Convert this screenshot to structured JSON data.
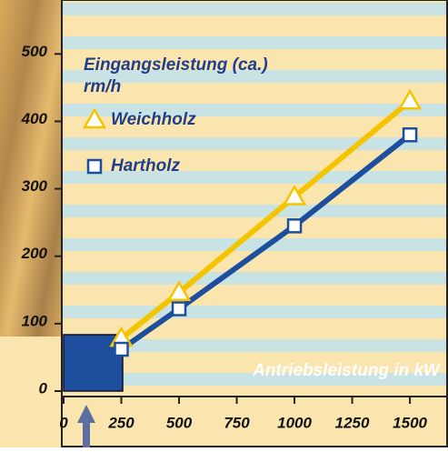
{
  "chart_data": {
    "type": "line",
    "y_label": "Eingangsleistung (ca.)",
    "y_unit": "rm/h",
    "x_label": "Antriebsleistung in kW",
    "x": [
      250,
      500,
      1000,
      1500
    ],
    "series": [
      {
        "name": "Weichholz",
        "color": "#f5c400",
        "marker": "triangle",
        "values": [
          78,
          146,
          288,
          430
        ]
      },
      {
        "name": "Hartholz",
        "color": "#1d4f9e",
        "marker": "square",
        "values": [
          62,
          122,
          245,
          380
        ]
      }
    ],
    "xlim": [
      0,
      1665
    ],
    "ylim": [
      0,
      580
    ],
    "xticks": [
      0,
      250,
      500,
      750,
      1000,
      1250,
      1500
    ],
    "yticks": [
      0,
      100,
      200,
      300,
      400,
      500
    ]
  }
}
